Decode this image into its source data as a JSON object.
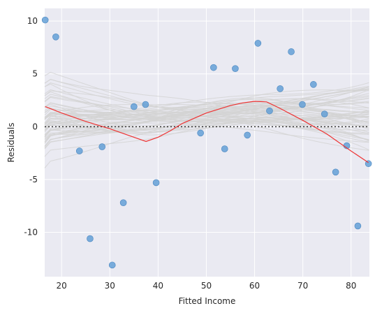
{
  "chart_data": {
    "type": "scatter",
    "title": "",
    "xlabel": "Fitted Income",
    "ylabel": "Residuals",
    "xlim": [
      16.5,
      83.8
    ],
    "ylim": [
      -14.2,
      11.2
    ],
    "xticks": [
      20,
      30,
      40,
      50,
      60,
      70,
      80
    ],
    "yticks": [
      -10,
      -5,
      0,
      5,
      10
    ],
    "grid": true,
    "background_color": "#eaeaf2",
    "reference_line": {
      "y": 0,
      "style": "dotted",
      "color": "#333333"
    },
    "points": {
      "color": "#5b9bd5",
      "x": [
        16.6,
        18.8,
        23.7,
        25.9,
        28.4,
        30.5,
        32.8,
        35.0,
        37.4,
        39.6,
        48.8,
        51.5,
        53.8,
        56.0,
        58.5,
        60.7,
        63.1,
        65.3,
        67.6,
        69.9,
        72.2,
        74.5,
        76.8,
        79.1,
        81.4,
        83.6
      ],
      "y": [
        10.1,
        8.5,
        -2.3,
        -10.6,
        -1.9,
        -13.1,
        -7.2,
        1.9,
        2.1,
        -5.3,
        -0.6,
        5.6,
        -2.1,
        5.5,
        -0.8,
        7.9,
        1.5,
        3.6,
        7.1,
        2.1,
        4.0,
        1.2,
        -4.3,
        -1.8,
        -9.4,
        -3.5
      ]
    },
    "smooth_curve": {
      "color": "#ee3333",
      "x": [
        16.6,
        20,
        25,
        30,
        35,
        37.5,
        40,
        42.5,
        45,
        50,
        55,
        57.5,
        60,
        62.5,
        65,
        70,
        75,
        80,
        83.6
      ],
      "y": [
        1.9,
        1.3,
        0.5,
        -0.2,
        -1.0,
        -1.4,
        -1.0,
        -0.4,
        0.3,
        1.3,
        2.0,
        2.25,
        2.4,
        2.35,
        1.8,
        0.6,
        -0.7,
        -2.3,
        -3.4
      ]
    },
    "bootstrap_band": {
      "color": "#d3d3d3",
      "n_curves": 60
    }
  }
}
